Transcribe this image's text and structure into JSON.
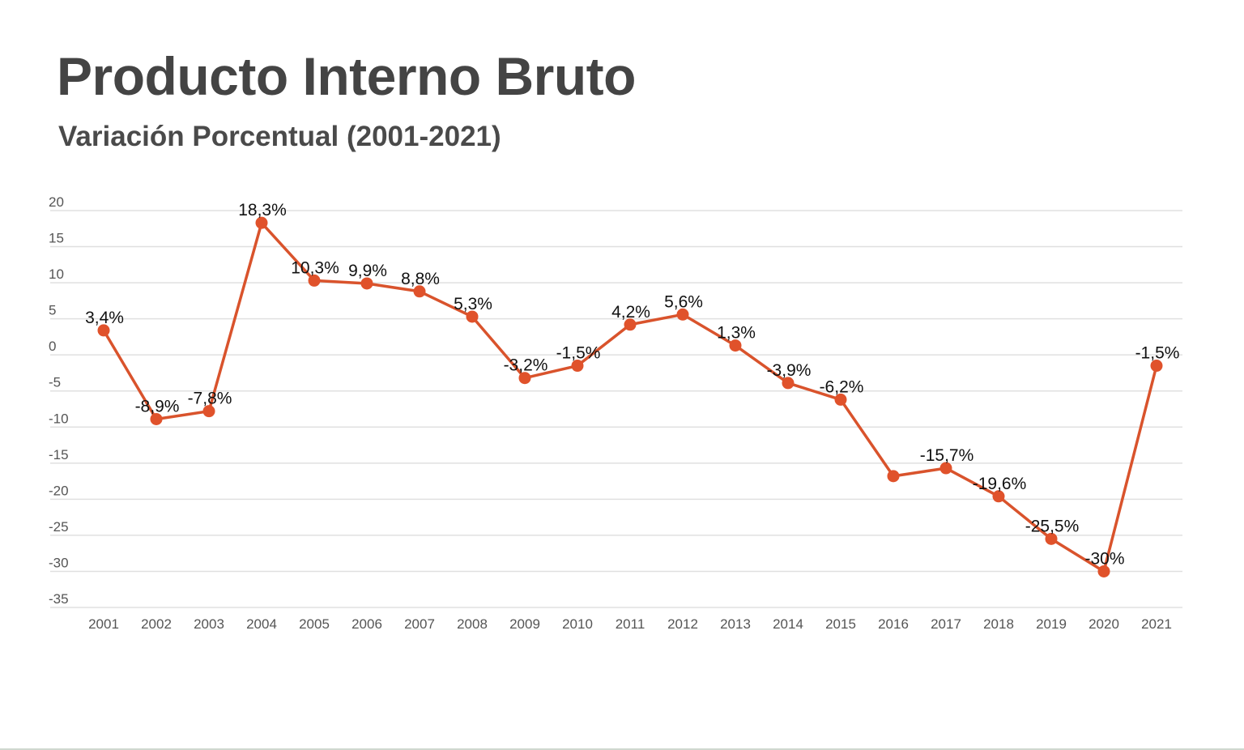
{
  "header": {
    "title": "Producto Interno Bruto",
    "subtitle": "Variación Porcentual (2001-2021)"
  },
  "chart_data": {
    "type": "line",
    "title": "Producto Interno Bruto",
    "subtitle": "Variación Porcentual (2001-2021)",
    "xlabel": "",
    "ylabel": "",
    "categories": [
      "2001",
      "2002",
      "2003",
      "2004",
      "2005",
      "2006",
      "2007",
      "2008",
      "2009",
      "2010",
      "2011",
      "2012",
      "2013",
      "2014",
      "2015",
      "2016",
      "2017",
      "2018",
      "2019",
      "2020",
      "2021"
    ],
    "series": [
      {
        "values": [
          3.4,
          -8.9,
          -7.8,
          18.3,
          10.3,
          9.9,
          8.8,
          5.3,
          -3.2,
          -1.5,
          4.2,
          5.6,
          1.3,
          -3.9,
          -6.2,
          -16.8,
          -15.7,
          -19.6,
          -25.5,
          -30,
          -1.5
        ],
        "data_labels": [
          "3,4%",
          "-8,9%",
          "-7,8%",
          "18,3%",
          "10,3%",
          "9,9%",
          "8,8%",
          "5,3%",
          "-3,2%",
          "-1,5%",
          "4,2%",
          "5,6%",
          "1,3%",
          "-3,9%",
          "-6,2%",
          "",
          "-15,7%",
          "-19,6%",
          "-25,5%",
          "-30%",
          "-1,5%"
        ]
      }
    ],
    "y_ticks": [
      "20",
      "15",
      "10",
      "5",
      "0",
      "-5",
      "-10",
      "-15",
      "-20",
      "-25",
      "-30",
      "-35"
    ],
    "ylim": [
      -35,
      20
    ],
    "grid": true,
    "legend": "none",
    "colors": {
      "line": "#d9532c",
      "marker": "#e0522b",
      "grid": "#e0e0e0",
      "tick_text": "#555555",
      "label_text": "#111111"
    }
  }
}
